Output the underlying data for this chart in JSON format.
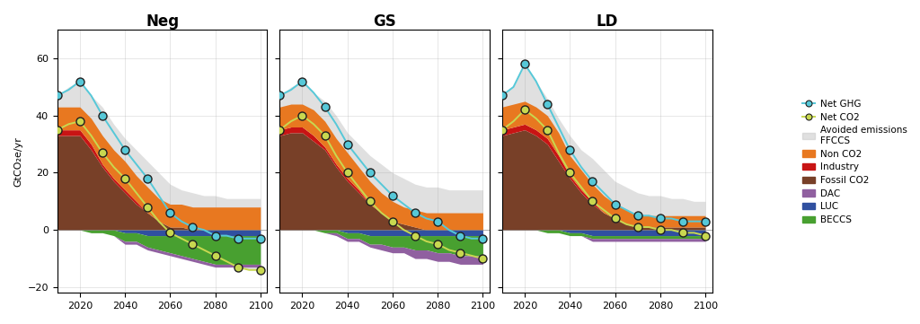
{
  "years": [
    2010,
    2015,
    2020,
    2025,
    2030,
    2035,
    2040,
    2045,
    2050,
    2055,
    2060,
    2065,
    2070,
    2075,
    2080,
    2085,
    2090,
    2095,
    2100
  ],
  "scenarios": {
    "Neg": {
      "net_ghg": [
        47,
        49,
        52,
        47,
        40,
        34,
        28,
        23,
        18,
        12,
        6,
        3,
        1,
        0,
        -2,
        -2,
        -3,
        -3,
        -3
      ],
      "net_co2": [
        35,
        37,
        38,
        33,
        27,
        22,
        18,
        13,
        8,
        3,
        -1,
        -3,
        -5,
        -7,
        -9,
        -11,
        -13,
        -14,
        -14
      ],
      "fossil_co2": [
        33,
        33,
        33,
        28,
        22,
        17,
        13,
        9,
        6,
        3,
        1,
        1,
        0,
        0,
        0,
        0,
        0,
        0,
        0
      ],
      "industry": [
        2,
        2,
        2,
        2,
        1,
        1,
        1,
        1,
        0,
        0,
        0,
        0,
        0,
        0,
        0,
        0,
        0,
        0,
        0
      ],
      "non_co2": [
        8,
        8,
        8,
        9,
        10,
        10,
        10,
        9,
        9,
        8,
        8,
        8,
        8,
        8,
        8,
        8,
        8,
        8,
        8
      ],
      "luc": [
        2,
        2,
        1,
        1,
        0,
        0,
        -1,
        -1,
        -2,
        -2,
        -2,
        -2,
        -2,
        -2,
        -2,
        -2,
        -2,
        -2,
        -2
      ],
      "beccs": [
        0,
        0,
        0,
        -1,
        -1,
        -2,
        -3,
        -3,
        -4,
        -5,
        -6,
        -7,
        -8,
        -9,
        -10,
        -10,
        -10,
        -10,
        -10
      ],
      "dac": [
        0,
        0,
        0,
        0,
        0,
        0,
        -1,
        -1,
        -1,
        -1,
        -1,
        -1,
        -1,
        -1,
        -1,
        -1,
        -1,
        -1,
        -1
      ],
      "avoided_upper": [
        47,
        50,
        52,
        47,
        43,
        37,
        32,
        28,
        24,
        20,
        16,
        14,
        13,
        12,
        12,
        11,
        11,
        11,
        11
      ],
      "avoided_lower": [
        35,
        37,
        38,
        33,
        27,
        22,
        18,
        13,
        8,
        3,
        -1,
        -3,
        -5,
        -7,
        -9,
        -11,
        -13,
        -14,
        -14
      ]
    },
    "GS": {
      "net_ghg": [
        47,
        49,
        52,
        48,
        43,
        37,
        30,
        25,
        20,
        16,
        12,
        9,
        6,
        4,
        3,
        0,
        -2,
        -3,
        -3
      ],
      "net_co2": [
        35,
        38,
        40,
        37,
        33,
        26,
        20,
        15,
        10,
        6,
        3,
        0,
        -2,
        -4,
        -5,
        -7,
        -8,
        -9,
        -10
      ],
      "fossil_co2": [
        33,
        34,
        34,
        31,
        28,
        22,
        17,
        13,
        9,
        6,
        3,
        2,
        1,
        0,
        0,
        0,
        0,
        0,
        0
      ],
      "industry": [
        2,
        2,
        2,
        2,
        1,
        1,
        1,
        1,
        0,
        0,
        0,
        0,
        0,
        0,
        0,
        0,
        0,
        0,
        0
      ],
      "non_co2": [
        8,
        8,
        8,
        9,
        9,
        9,
        9,
        8,
        8,
        7,
        7,
        6,
        6,
        6,
        6,
        6,
        6,
        6,
        6
      ],
      "luc": [
        2,
        2,
        1,
        1,
        0,
        0,
        -1,
        -1,
        -2,
        -2,
        -2,
        -2,
        -2,
        -2,
        -2,
        -2,
        -2,
        -2,
        -2
      ],
      "beccs": [
        0,
        0,
        0,
        0,
        -1,
        -1,
        -2,
        -2,
        -3,
        -3,
        -4,
        -4,
        -5,
        -5,
        -6,
        -6,
        -7,
        -7,
        -7
      ],
      "dac": [
        0,
        0,
        0,
        0,
        0,
        -1,
        -1,
        -1,
        -1,
        -2,
        -2,
        -2,
        -3,
        -3,
        -3,
        -3,
        -3,
        -3,
        -3
      ],
      "avoided_upper": [
        47,
        50,
        52,
        48,
        45,
        40,
        34,
        30,
        26,
        23,
        20,
        18,
        16,
        15,
        15,
        14,
        14,
        14,
        14
      ],
      "avoided_lower": [
        35,
        38,
        40,
        37,
        33,
        26,
        20,
        15,
        10,
        6,
        3,
        0,
        -2,
        -4,
        -5,
        -7,
        -8,
        -9,
        -10
      ]
    },
    "LD": {
      "net_ghg": [
        47,
        50,
        58,
        52,
        44,
        36,
        28,
        22,
        17,
        13,
        9,
        7,
        5,
        5,
        4,
        4,
        3,
        3,
        3
      ],
      "net_co2": [
        35,
        38,
        42,
        39,
        35,
        27,
        20,
        15,
        10,
        7,
        4,
        2,
        1,
        1,
        0,
        0,
        -1,
        -1,
        -2
      ],
      "fossil_co2": [
        33,
        34,
        35,
        33,
        30,
        24,
        18,
        13,
        9,
        6,
        4,
        2,
        1,
        1,
        1,
        1,
        1,
        1,
        1
      ],
      "industry": [
        2,
        2,
        2,
        2,
        2,
        2,
        1,
        1,
        1,
        0,
        0,
        0,
        0,
        0,
        0,
        0,
        0,
        0,
        0
      ],
      "non_co2": [
        8,
        8,
        8,
        8,
        8,
        8,
        7,
        7,
        6,
        6,
        5,
        5,
        4,
        4,
        4,
        4,
        4,
        4,
        4
      ],
      "luc": [
        2,
        2,
        1,
        1,
        0,
        0,
        -1,
        -1,
        -2,
        -2,
        -2,
        -2,
        -2,
        -2,
        -2,
        -2,
        -2,
        -2,
        -2
      ],
      "beccs": [
        0,
        0,
        0,
        0,
        -1,
        -1,
        -1,
        -1,
        -1,
        -1,
        -1,
        -1,
        -1,
        -1,
        -1,
        -1,
        -1,
        -1,
        -1
      ],
      "dac": [
        0,
        0,
        0,
        0,
        0,
        0,
        0,
        0,
        -1,
        -1,
        -1,
        -1,
        -1,
        -1,
        -1,
        -1,
        -1,
        -1,
        -1
      ],
      "avoided_upper": [
        47,
        50,
        58,
        52,
        46,
        39,
        33,
        28,
        25,
        21,
        17,
        15,
        13,
        12,
        12,
        11,
        11,
        10,
        10
      ],
      "avoided_lower": [
        35,
        38,
        42,
        39,
        35,
        27,
        20,
        15,
        10,
        7,
        4,
        2,
        1,
        1,
        0,
        0,
        -1,
        -1,
        -2
      ]
    }
  },
  "colors": {
    "net_ghg": "#56C8D8",
    "net_co2": "#C8D850",
    "avoided": "#C8C8C8",
    "non_co2": "#E87820",
    "industry": "#C81414",
    "fossil_co2": "#784028",
    "dac": "#9060A0",
    "luc": "#3050A0",
    "beccs": "#48A030"
  },
  "ylim": [
    -22,
    70
  ],
  "yticks": [
    -20,
    0,
    20,
    40,
    60
  ],
  "xticks": [
    2020,
    2040,
    2060,
    2080,
    2100
  ],
  "ylabel": "GtCO₂e/yr",
  "titles": [
    "Neg",
    "GS",
    "LD"
  ]
}
